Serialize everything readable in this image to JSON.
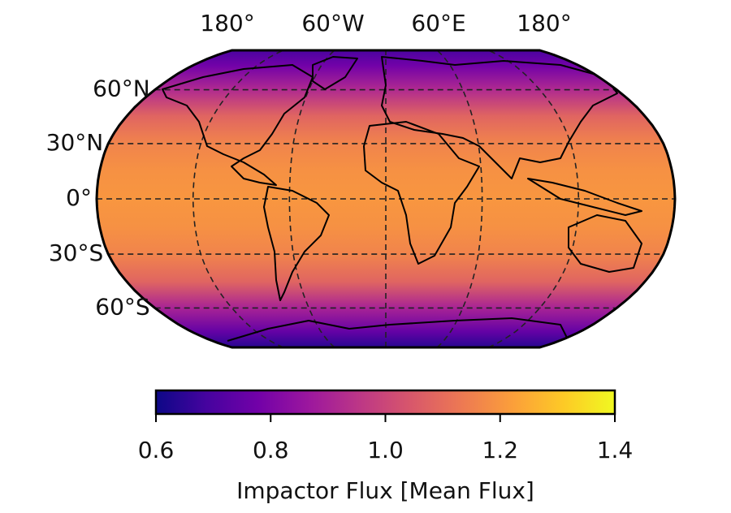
{
  "chart_data": {
    "type": "map",
    "xticks": [
      {
        "value": -180,
        "label": "180°"
      },
      {
        "value": -60,
        "label": "60°W"
      },
      {
        "value": 60,
        "label": "60°E"
      },
      {
        "value": 180,
        "label": "180°"
      }
    ],
    "yticks": [
      {
        "value": 60,
        "label": "60°N"
      },
      {
        "value": 30,
        "label": "30°N"
      },
      {
        "value": 0,
        "label": "0°"
      },
      {
        "value": -30,
        "label": "30°S"
      },
      {
        "value": -60,
        "label": "60°S"
      }
    ],
    "meridians": [
      -120,
      -60,
      0,
      60,
      120
    ],
    "latitudes": [
      -90,
      -75,
      -60,
      -45,
      -30,
      -15,
      0,
      15,
      30,
      45,
      60,
      75,
      90
    ],
    "values": [
      0.64,
      0.75,
      0.9,
      1.08,
      1.16,
      1.19,
      1.2,
      1.19,
      1.16,
      1.08,
      0.92,
      0.78,
      0.7
    ],
    "colormap_colors": [
      "#0d0887",
      "#46039f",
      "#7201a8",
      "#9c179e",
      "#bd3786",
      "#d8576b",
      "#ed7953",
      "#fb9f3a",
      "#fdca26",
      "#f0f921"
    ],
    "clim": [
      0.6,
      1.4
    ],
    "cticks": [
      0.6,
      0.8,
      {
        "value": 1,
        "label": "1.0"
      },
      1.2,
      1.4
    ],
    "colorbar_label": "Impactor Flux [Mean Flux]"
  }
}
